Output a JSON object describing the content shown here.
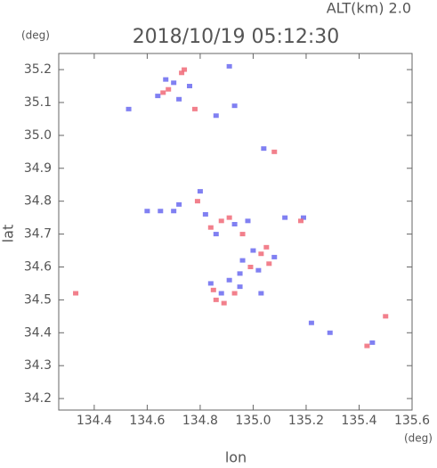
{
  "chart_data": {
    "type": "scatter",
    "title": "2018/10/19 05:12:30",
    "subtitle": "ALT(km) 2.0",
    "x_label": "lon",
    "y_label": "lat",
    "x_unit": "(deg)",
    "y_unit": "(deg)",
    "xlim": [
      134.266,
      135.6
    ],
    "ylim": [
      34.165,
      35.249
    ],
    "xticks": [
      134.4,
      134.6,
      134.8,
      {
        "value": 135.0,
        "label": "135.0"
      },
      135.2,
      135.4,
      135.6
    ],
    "yticks": [
      34.2,
      34.3,
      34.4,
      34.5,
      34.6,
      34.7,
      34.8,
      34.9,
      {
        "value": 35.0,
        "label": "35.0"
      },
      35.1,
      35.2
    ],
    "series": [
      {
        "color": "#6a6af0",
        "x": [
          134.64,
          134.7,
          134.76,
          134.72,
          134.67,
          134.53,
          134.91,
          134.86,
          134.93,
          135.04,
          134.6,
          134.65,
          134.7,
          134.72,
          134.8,
          134.82,
          134.86,
          134.93,
          134.98,
          135.0,
          134.96,
          135.02,
          135.08,
          134.95,
          134.84,
          134.88,
          134.91,
          134.95,
          135.19,
          135.12,
          135.22,
          135.29,
          135.45,
          135.03
        ],
        "values": [
          35.12,
          35.16,
          35.15,
          35.11,
          35.17,
          35.08,
          35.21,
          35.06,
          35.09,
          34.96,
          34.77,
          34.77,
          34.77,
          34.79,
          34.83,
          34.76,
          34.7,
          34.73,
          34.74,
          34.65,
          34.62,
          34.59,
          34.63,
          34.58,
          34.55,
          34.52,
          34.56,
          34.54,
          34.75,
          34.75,
          34.43,
          34.4,
          34.37,
          34.52
        ]
      },
      {
        "color": "#f06a78",
        "x": [
          134.73,
          134.74,
          134.66,
          134.68,
          134.78,
          135.08,
          134.79,
          134.88,
          134.91,
          134.84,
          134.96,
          135.05,
          135.03,
          135.06,
          134.99,
          134.85,
          134.89,
          134.93,
          134.86,
          134.33,
          135.18,
          135.43,
          135.5
        ],
        "values": [
          35.19,
          35.2,
          35.13,
          35.14,
          35.08,
          34.95,
          34.8,
          34.74,
          34.75,
          34.72,
          34.7,
          34.66,
          34.64,
          34.61,
          34.6,
          34.53,
          34.49,
          34.52,
          34.5,
          34.52,
          34.74,
          34.36,
          34.45
        ]
      }
    ]
  }
}
